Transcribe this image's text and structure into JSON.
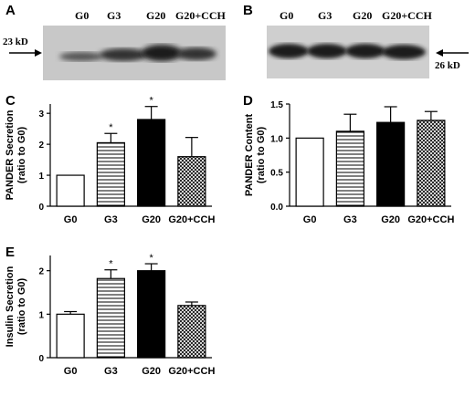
{
  "panels": {
    "a": "A",
    "b": "B",
    "c": "C",
    "d": "D",
    "e": "E"
  },
  "blots": [
    {
      "lanes": [
        "G0",
        "G3",
        "G20",
        "G20+CCH"
      ],
      "marker": "23 kD"
    },
    {
      "lanes": [
        "G0",
        "G3",
        "G20",
        "G20+CCH"
      ],
      "marker": "26 kD"
    }
  ],
  "colors": {
    "blot_background": "#d0d0d0",
    "band": "#2a2a2a",
    "g20_bar": "#000000",
    "g0_bar": "#ffffff"
  },
  "chart_data": [
    {
      "type": "bar",
      "panel": "C",
      "categories": [
        "G0",
        "G3",
        "G20",
        "G20+CCH"
      ],
      "values": [
        1.0,
        2.05,
        2.8,
        1.6
      ],
      "errors": [
        0.0,
        0.3,
        0.42,
        0.62
      ],
      "significant": [
        "",
        "*",
        "*",
        ""
      ],
      "fills": [
        "white",
        "horizontal-stripes",
        "black",
        "crosshatch"
      ],
      "ylabel": "PANDER Secretion (ratio to G0)",
      "ylim": [
        0,
        3.3
      ],
      "yticks": [
        "0",
        "1",
        "2",
        "3"
      ]
    },
    {
      "type": "bar",
      "panel": "D",
      "categories": [
        "G0",
        "G3",
        "G20",
        "G20+CCH"
      ],
      "values": [
        1.0,
        1.1,
        1.23,
        1.26
      ],
      "errors": [
        0.0,
        0.25,
        0.23,
        0.13
      ],
      "significant": [
        "",
        "",
        "",
        ""
      ],
      "fills": [
        "white",
        "horizontal-stripes",
        "black",
        "crosshatch"
      ],
      "ylabel": "PANDER Content (ratio to G0)",
      "ylim": [
        0,
        1.5
      ],
      "yticks": [
        "0.0",
        "0.5",
        "1.0",
        "1.5"
      ]
    },
    {
      "type": "bar",
      "panel": "E",
      "categories": [
        "G0",
        "G3",
        "G20",
        "G20+CCH"
      ],
      "values": [
        1.0,
        1.82,
        2.0,
        1.2
      ],
      "errors": [
        0.06,
        0.2,
        0.16,
        0.08
      ],
      "significant": [
        "",
        "*",
        "*",
        ""
      ],
      "fills": [
        "white",
        "horizontal-stripes",
        "black",
        "crosshatch"
      ],
      "ylabel": "Insulin Secretion (ratio to G0)",
      "ylim": [
        0,
        2.35
      ],
      "yticks": [
        "0",
        "1",
        "2"
      ]
    }
  ]
}
